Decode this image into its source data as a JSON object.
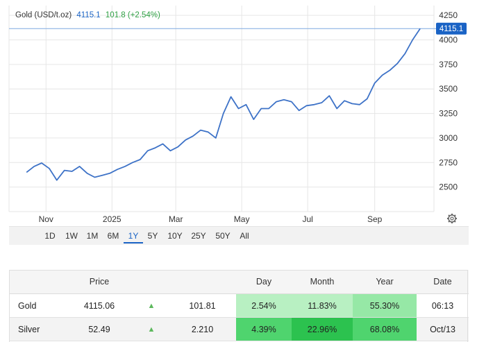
{
  "legend": {
    "name": "Gold (USD/t.oz)",
    "price": "4115.1",
    "change": "101.8 (+2.54%)"
  },
  "price_tag": "4115.1",
  "colors": {
    "line": "#3d72c7",
    "tag": "#1a63c5",
    "up": "#2ea043",
    "refline": "#7ea9e0",
    "green_light": "#b8f0c2",
    "green_mid": "#86e59a",
    "green_strong": "#4fd46e",
    "green_deep": "#2cc24f"
  },
  "range_buttons": [
    "1D",
    "1W",
    "1M",
    "6M",
    "1Y",
    "5Y",
    "10Y",
    "25Y",
    "50Y",
    "All"
  ],
  "active_range": "1Y",
  "settings_icon": "gear-icon",
  "chart_data": {
    "type": "line",
    "title": "",
    "xlabel": "",
    "ylabel": "",
    "x_ticks": [
      "Nov",
      "2025",
      "Mar",
      "May",
      "Jul",
      "Sep"
    ],
    "y_ticks": [
      "2500",
      "2750",
      "3000",
      "3250",
      "3500",
      "3750",
      "4000",
      "4250"
    ],
    "ylim": [
      2250,
      4350
    ],
    "grid": true,
    "series": [
      {
        "x": [
          "2024-10-14",
          "2024-10-21",
          "2024-10-28",
          "2024-11-04",
          "2024-11-11",
          "2024-11-18",
          "2024-11-25",
          "2024-12-02",
          "2024-12-09",
          "2024-12-16",
          "2024-12-23",
          "2024-12-30",
          "2025-01-06",
          "2025-01-13",
          "2025-01-20",
          "2025-01-27",
          "2025-02-03",
          "2025-02-10",
          "2025-02-17",
          "2025-02-24",
          "2025-03-03",
          "2025-03-10",
          "2025-03-17",
          "2025-03-24",
          "2025-03-31",
          "2025-04-07",
          "2025-04-14",
          "2025-04-21",
          "2025-04-28",
          "2025-05-05",
          "2025-05-12",
          "2025-05-19",
          "2025-05-26",
          "2025-06-02",
          "2025-06-09",
          "2025-06-16",
          "2025-06-23",
          "2025-06-30",
          "2025-07-07",
          "2025-07-14",
          "2025-07-21",
          "2025-07-28",
          "2025-08-04",
          "2025-08-11",
          "2025-08-18",
          "2025-08-25",
          "2025-09-01",
          "2025-09-08",
          "2025-09-15",
          "2025-09-22",
          "2025-09-29",
          "2025-10-06",
          "2025-10-13"
        ],
        "y": [
          2650,
          2710,
          2745,
          2690,
          2570,
          2670,
          2660,
          2710,
          2640,
          2600,
          2620,
          2640,
          2680,
          2710,
          2750,
          2780,
          2870,
          2900,
          2940,
          2870,
          2910,
          2980,
          3020,
          3080,
          3060,
          3000,
          3250,
          3420,
          3300,
          3340,
          3190,
          3300,
          3300,
          3370,
          3390,
          3370,
          3280,
          3330,
          3340,
          3360,
          3430,
          3300,
          3380,
          3350,
          3340,
          3400,
          3560,
          3640,
          3690,
          3760,
          3860,
          4000,
          4115
        ]
      }
    ]
  },
  "table": {
    "headers": [
      "",
      "Price",
      "",
      "",
      "Day",
      "Month",
      "Year",
      "Date"
    ],
    "rows": [
      {
        "name": "Gold",
        "price": "4115.06",
        "arrow": "▲",
        "change": "101.81",
        "day": "2.54%",
        "month": "11.83%",
        "year": "55.30%",
        "date": "06:13"
      },
      {
        "name": "Silver",
        "price": "52.49",
        "arrow": "▲",
        "change": "2.210",
        "day": "4.39%",
        "month": "22.96%",
        "year": "68.08%",
        "date": "Oct/13"
      }
    ]
  }
}
